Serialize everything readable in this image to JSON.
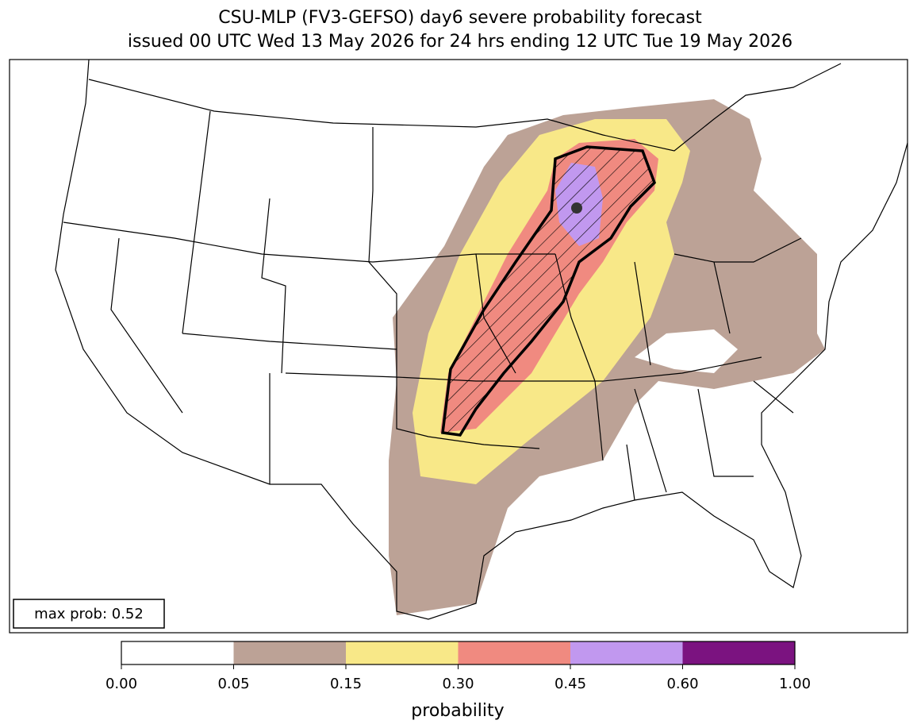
{
  "title": [
    "CSU-MLP (FV3-GEFSO) day6 severe probability forecast",
    "issued 00 UTC Wed 13 May 2026 for 24 hrs ending 12 UTC Tue 19 May 2026"
  ],
  "max_prob_label": "max prob: 0.52",
  "colorbar": {
    "label": "probability",
    "ticks": [
      {
        "value": 0,
        "label": "0.00"
      },
      {
        "value": 0.05,
        "label": "0.05"
      },
      {
        "value": 0.15,
        "label": "0.15"
      },
      {
        "value": 0.3,
        "label": "0.30"
      },
      {
        "value": 0.45,
        "label": "0.45"
      },
      {
        "value": 0.6,
        "label": "0.60"
      },
      {
        "value": 1,
        "label": "1.00"
      }
    ],
    "colors": [
      "#ffffff",
      "#bca296",
      "#f8e888",
      "#f08a80",
      "#c198ef",
      "#7b1380"
    ]
  }
}
